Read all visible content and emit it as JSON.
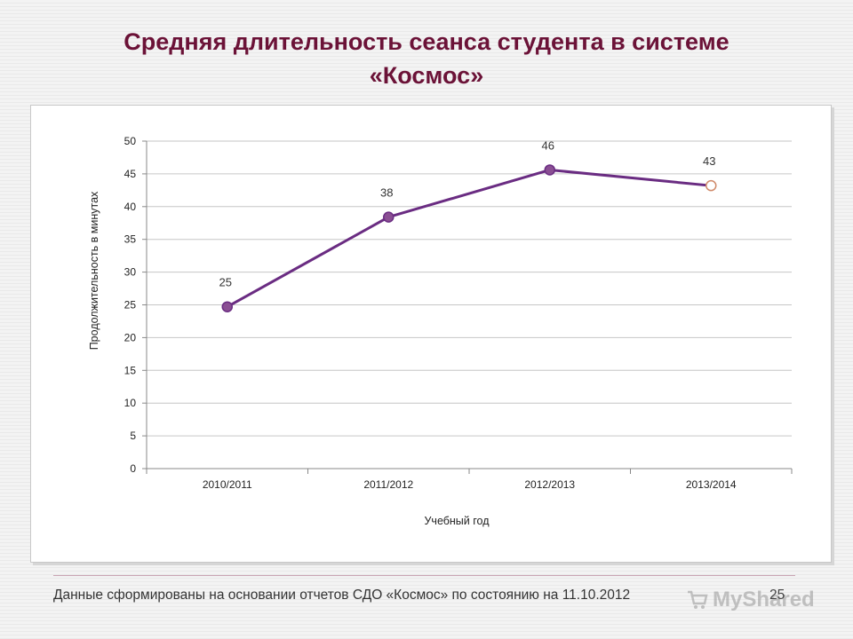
{
  "slide": {
    "title_line1": "Средняя длительность сеанса студента в системе",
    "title_line2": "«Космос»",
    "footer_note": "Данные сформированы на основании отчетов СДО «Космос» по состоянию на 11.10.2012",
    "slide_number": "25",
    "watermark_text": "MyShared",
    "title_color": "#6b1237"
  },
  "chart_data": {
    "type": "line",
    "title": "",
    "xlabel": "Учебный год",
    "ylabel": "Продолжительность в минутах",
    "categories": [
      "2010/2011",
      "2011/2012",
      "2012/2013",
      "2013/2014"
    ],
    "series": [
      {
        "values": [
          24.7,
          38.4,
          45.6,
          43.2
        ],
        "data_labels": [
          "25",
          "38",
          "46",
          "43"
        ],
        "color": "#6a2c82",
        "marker_fill": "#8a4f93",
        "last_marker_fill": "#ffffff",
        "last_marker_stroke": "#d08a6a"
      }
    ],
    "ylim": [
      0,
      50
    ],
    "yticks": [
      0,
      5,
      10,
      15,
      20,
      25,
      30,
      35,
      40,
      45,
      50
    ],
    "grid": true,
    "legend": "none"
  }
}
